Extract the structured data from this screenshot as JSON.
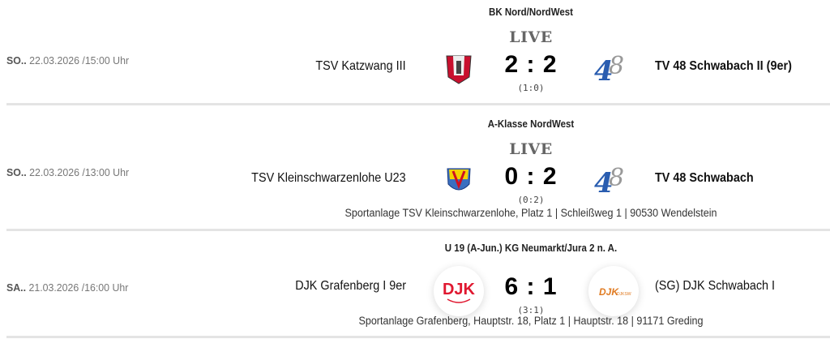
{
  "matches": [
    {
      "weekday": "SO..",
      "date_time": " 22.03.2026 /15:00 Uhr",
      "league": "BK Nord/NordWest",
      "status": "LIVE",
      "home": "TSV Katzwang III",
      "away": "TV 48 Schwabach II (9er)",
      "score": "2 : 2",
      "halftime": "(1:0)",
      "home_logo": "katzwang-crest-icon",
      "away_logo": "tv48-logo-icon"
    },
    {
      "weekday": "SO..",
      "date_time": " 22.03.2026 /13:00 Uhr",
      "league": "A-Klasse NordWest",
      "status": "LIVE",
      "home": "TSV Kleinschwarzenlohe U23",
      "away": "TV 48 Schwabach",
      "score": "0 : 2",
      "halftime": "(0:2)",
      "venue": "Sportanlage TSV Kleinschwarzenlohe, Platz 1 | Schleißweg 1 | 90530 Wendelstein",
      "home_logo": "kleinschwarzenlohe-crest-icon",
      "away_logo": "tv48-logo-icon"
    },
    {
      "weekday": "SA..",
      "date_time": " 21.03.2026 /16:00 Uhr",
      "league": "U 19 (A-Jun.) KG Neumarkt/Jura 2 n. A.",
      "home": "DJK Grafenberg I 9er",
      "away": "(SG) DJK Schwabach I",
      "score": "6 : 1",
      "halftime": "(3:1)",
      "venue": "Sportanlage Grafenberg, Hauptstr. 18, Platz 1 | Hauptstr. 18 | 91171 Greding",
      "home_logo": "djk-grafenberg-logo-icon",
      "away_logo": "djk-schwabach-logo-icon"
    }
  ],
  "colors": {
    "live": "#666666",
    "divider": "#e4e4e4",
    "katzwang_red": "#c8102e",
    "tv48_blue": "#2a5db0",
    "djk_orange": "#e07a20"
  }
}
